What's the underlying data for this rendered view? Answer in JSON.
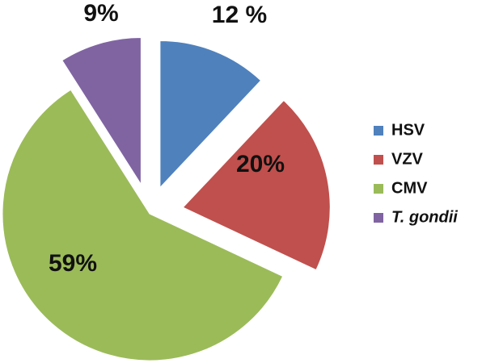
{
  "chart_data": {
    "type": "pie",
    "categories": [
      "HSV",
      "VZV",
      "CMV",
      "T. gondii"
    ],
    "values": [
      12,
      20,
      59,
      9
    ],
    "value_labels": [
      "12 %",
      "20%",
      "59%",
      "9%"
    ],
    "colors": [
      "#4f81bd",
      "#c0504d",
      "#9bbb59",
      "#8064a2"
    ],
    "legend": "right"
  }
}
